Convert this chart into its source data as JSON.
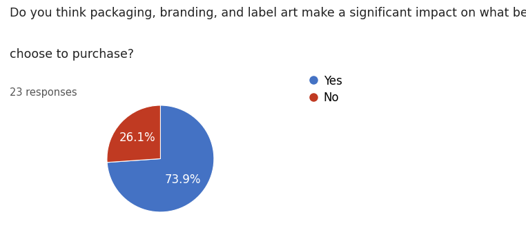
{
  "title_line1": "Do you think packaging, branding, and label art make a significant impact on what beers you",
  "title_line2": "choose to purchase?",
  "subtitle": "23 responses",
  "slices": [
    73.9,
    26.1
  ],
  "labels": [
    "Yes",
    "No"
  ],
  "colors": [
    "#4472C4",
    "#C03A22"
  ],
  "autopct_labels": [
    "73.9%",
    "26.1%"
  ],
  "legend_labels": [
    "Yes",
    "No"
  ],
  "background_color": "#ffffff",
  "title_fontsize": 12.5,
  "subtitle_fontsize": 10.5,
  "label_fontsize": 12,
  "legend_fontsize": 12,
  "startangle": 90
}
